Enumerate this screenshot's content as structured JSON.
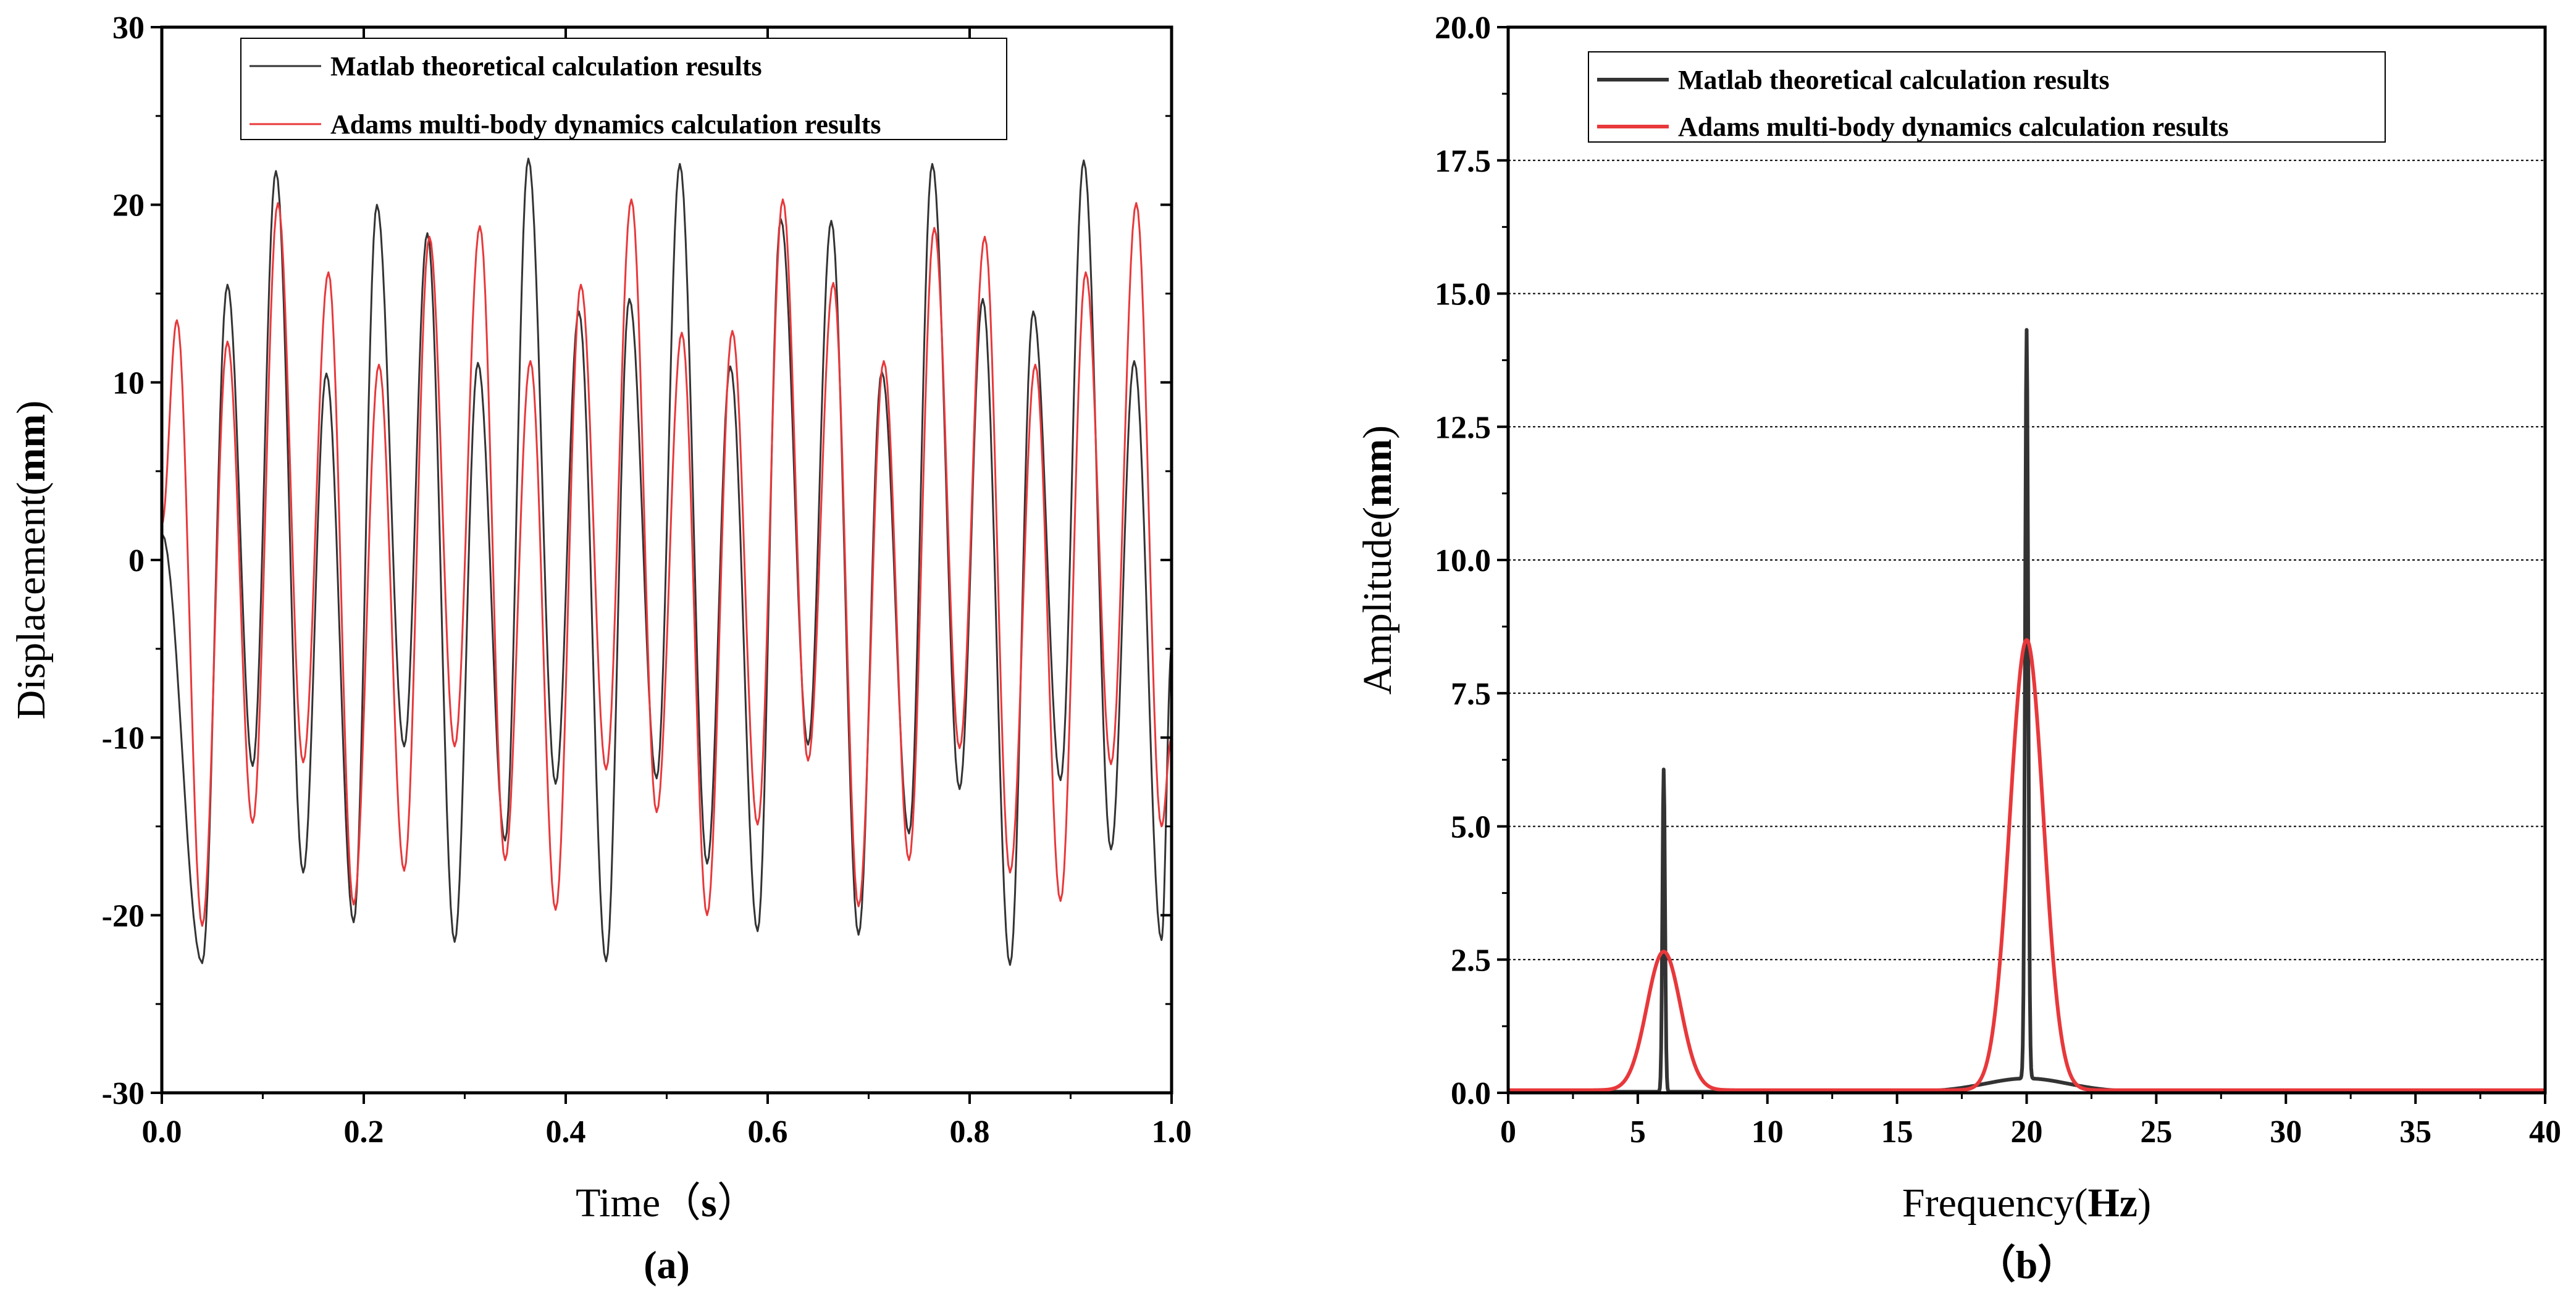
{
  "chart_data": [
    {
      "type": "line",
      "panel_label": "(a)",
      "xlabel": "Time（s）",
      "xlabel_parts": {
        "main": "Time（",
        "bold": "s",
        "end": "）"
      },
      "ylabel": "Displacement(mm)",
      "ylabel_parts": {
        "main": "Displacement(",
        "bold": "mm",
        "end": ")"
      },
      "xlim": [
        0.0,
        1.0
      ],
      "ylim": [
        -30,
        30
      ],
      "xticks": [
        "0.0",
        "0.2",
        "0.4",
        "0.6",
        "0.8",
        "1.0"
      ],
      "yticks": [
        "-30",
        "-20",
        "-10",
        "0",
        "10",
        "20",
        "30"
      ],
      "grid": false,
      "legend_position": "top-left",
      "series": [
        {
          "name": "Matlab theoretical calculation results",
          "color": "#333333",
          "model": {
            "a1_amp": 6.0,
            "a1_freq": 6.0,
            "a2_amp": 14.0,
            "a2_freq": 20.0,
            "phase1": 0.3,
            "phase2": 0.9
          },
          "peaks": [
            {
              "x": 0.065,
              "y": 15.5
            },
            {
              "x": 0.113,
              "y": 21.9
            },
            {
              "x": 0.163,
              "y": 10.5
            },
            {
              "x": 0.213,
              "y": 20.0
            },
            {
              "x": 0.263,
              "y": 18.4
            },
            {
              "x": 0.313,
              "y": 11.1
            },
            {
              "x": 0.363,
              "y": 22.6
            },
            {
              "x": 0.413,
              "y": 14.0
            },
            {
              "x": 0.463,
              "y": 14.7
            },
            {
              "x": 0.513,
              "y": 22.3
            },
            {
              "x": 0.563,
              "y": 10.9
            },
            {
              "x": 0.613,
              "y": 19.2
            },
            {
              "x": 0.663,
              "y": 19.1
            },
            {
              "x": 0.713,
              "y": 10.6
            },
            {
              "x": 0.763,
              "y": 22.3
            },
            {
              "x": 0.813,
              "y": 14.7
            },
            {
              "x": 0.863,
              "y": 14.0
            },
            {
              "x": 0.913,
              "y": 22.5
            },
            {
              "x": 0.963,
              "y": 11.2
            }
          ],
          "troughs": [
            {
              "x": 0.04,
              "y": -22.7
            },
            {
              "x": 0.09,
              "y": -11.6
            },
            {
              "x": 0.14,
              "y": -17.6
            },
            {
              "x": 0.19,
              "y": -20.4
            },
            {
              "x": 0.24,
              "y": -10.5
            },
            {
              "x": 0.29,
              "y": -21.5
            },
            {
              "x": 0.34,
              "y": -15.8
            },
            {
              "x": 0.39,
              "y": -12.6
            },
            {
              "x": 0.44,
              "y": -22.6
            },
            {
              "x": 0.49,
              "y": -12.3
            },
            {
              "x": 0.54,
              "y": -17.1
            },
            {
              "x": 0.59,
              "y": -20.9
            },
            {
              "x": 0.64,
              "y": -10.4
            },
            {
              "x": 0.69,
              "y": -21.1
            },
            {
              "x": 0.74,
              "y": -15.4
            },
            {
              "x": 0.79,
              "y": -12.9
            },
            {
              "x": 0.84,
              "y": -22.8
            },
            {
              "x": 0.89,
              "y": -12.4
            },
            {
              "x": 0.94,
              "y": -16.3
            },
            {
              "x": 0.99,
              "y": -21.4
            }
          ]
        },
        {
          "name": "Adams multi-body dynamics calculation results",
          "color": "#e8383b",
          "peaks": [
            {
              "x": 0.015,
              "y": 13.5
            },
            {
              "x": 0.065,
              "y": 12.3
            },
            {
              "x": 0.115,
              "y": 20.1
            },
            {
              "x": 0.165,
              "y": 16.2
            },
            {
              "x": 0.215,
              "y": 11.0
            },
            {
              "x": 0.265,
              "y": 18.2
            },
            {
              "x": 0.315,
              "y": 18.8
            },
            {
              "x": 0.365,
              "y": 11.2
            },
            {
              "x": 0.415,
              "y": 15.5
            },
            {
              "x": 0.465,
              "y": 20.3
            },
            {
              "x": 0.515,
              "y": 12.8
            },
            {
              "x": 0.565,
              "y": 12.9
            },
            {
              "x": 0.615,
              "y": 20.3
            },
            {
              "x": 0.665,
              "y": 15.6
            },
            {
              "x": 0.715,
              "y": 11.2
            },
            {
              "x": 0.765,
              "y": 18.7
            },
            {
              "x": 0.815,
              "y": 18.2
            },
            {
              "x": 0.865,
              "y": 11.0
            },
            {
              "x": 0.915,
              "y": 16.2
            },
            {
              "x": 0.965,
              "y": 20.1
            }
          ],
          "troughs": [
            {
              "x": 0.04,
              "y": -20.6
            },
            {
              "x": 0.09,
              "y": -14.8
            },
            {
              "x": 0.14,
              "y": -11.4
            },
            {
              "x": 0.19,
              "y": -19.4
            },
            {
              "x": 0.24,
              "y": -17.5
            },
            {
              "x": 0.29,
              "y": -10.5
            },
            {
              "x": 0.34,
              "y": -16.9
            },
            {
              "x": 0.39,
              "y": -19.7
            },
            {
              "x": 0.44,
              "y": -11.8
            },
            {
              "x": 0.49,
              "y": -14.2
            },
            {
              "x": 0.54,
              "y": -20.0
            },
            {
              "x": 0.59,
              "y": -14.9
            },
            {
              "x": 0.64,
              "y": -11.3
            },
            {
              "x": 0.69,
              "y": -19.5
            },
            {
              "x": 0.74,
              "y": -16.9
            },
            {
              "x": 0.79,
              "y": -10.6
            },
            {
              "x": 0.84,
              "y": -17.6
            },
            {
              "x": 0.89,
              "y": -19.2
            },
            {
              "x": 0.94,
              "y": -11.5
            },
            {
              "x": 0.99,
              "y": -15.0
            }
          ]
        }
      ]
    },
    {
      "type": "line",
      "panel_label": "（b）",
      "xlabel": "Frequency(Hz)",
      "xlabel_parts": {
        "main": "Frequency(",
        "bold": "Hz",
        "end": ")"
      },
      "ylabel": "Amplitude(mm)",
      "ylabel_parts": {
        "main": "Amplitude(",
        "bold": "mm",
        "end": ")"
      },
      "xlim": [
        0,
        40
      ],
      "ylim": [
        0.0,
        20.0
      ],
      "xticks": [
        "0",
        "5",
        "10",
        "15",
        "20",
        "25",
        "30",
        "35",
        "40"
      ],
      "yticks": [
        "0.0",
        "2.5",
        "5.0",
        "7.5",
        "10.0",
        "12.5",
        "15.0",
        "17.5",
        "20.0"
      ],
      "grid": true,
      "legend_position": "top-left",
      "series": [
        {
          "name": "Matlab theoretical calculation results",
          "color": "#333333",
          "peaks": [
            {
              "x": 6.0,
              "y": 6.05,
              "width": 0.05
            },
            {
              "x": 20.0,
              "y": 14.05,
              "width": 0.06
            }
          ],
          "baseline": 0.02
        },
        {
          "name": "Adams multi-body dynamics calculation results",
          "color": "#e8383b",
          "peaks": [
            {
              "x": 6.0,
              "y": 2.6,
              "width": 0.65
            },
            {
              "x": 20.0,
              "y": 8.45,
              "width": 0.65
            }
          ],
          "baseline": 0.05
        }
      ]
    }
  ]
}
